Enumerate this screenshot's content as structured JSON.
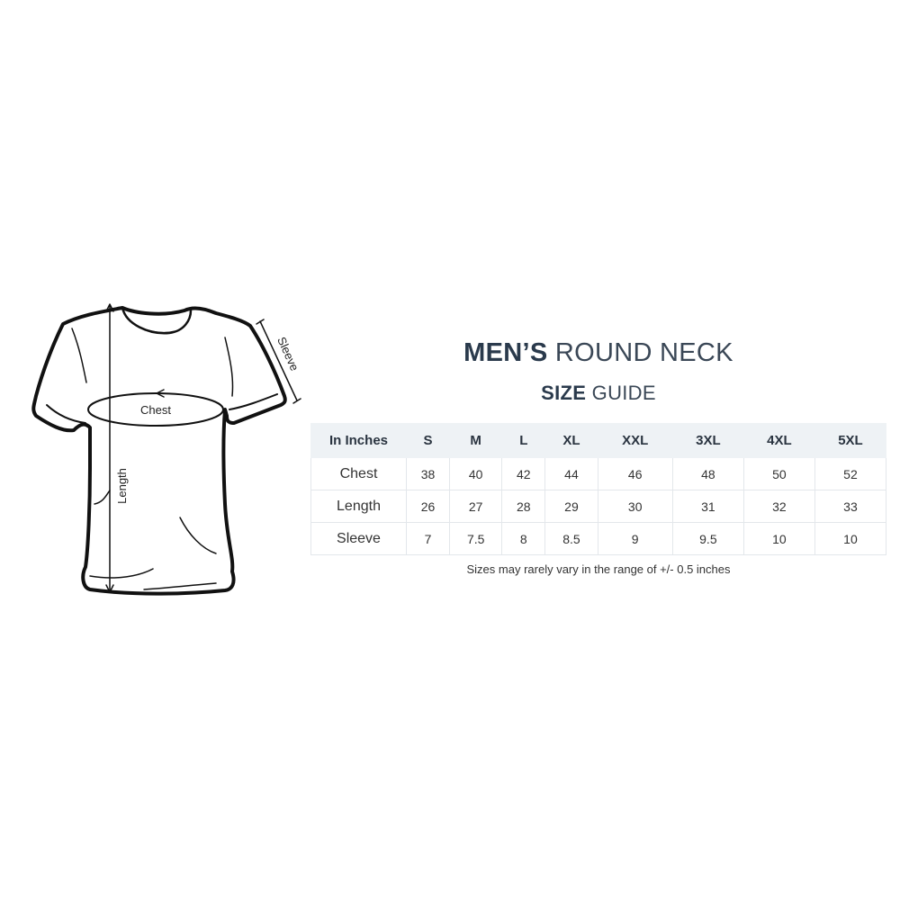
{
  "title": {
    "bold": "MEN’S",
    "light": "ROUND NECK"
  },
  "subtitle": {
    "bold": "SIZE",
    "light": "GUIDE"
  },
  "diagram_labels": {
    "chest": "Chest",
    "length": "Length",
    "sleeve": "Sleeve"
  },
  "table": {
    "headers": [
      "In Inches",
      "S",
      "M",
      "L",
      "XL",
      "XXL",
      "3XL",
      "4XL",
      "5XL"
    ],
    "rows": [
      {
        "label": "Chest",
        "values": [
          "38",
          "40",
          "42",
          "44",
          "46",
          "48",
          "50",
          "52"
        ]
      },
      {
        "label": "Length",
        "values": [
          "26",
          "27",
          "28",
          "29",
          "30",
          "31",
          "32",
          "33"
        ]
      },
      {
        "label": "Sleeve",
        "values": [
          "7",
          "7.5",
          "8",
          "8.5",
          "9",
          "9.5",
          "10",
          "10"
        ]
      }
    ]
  },
  "note": "Sizes may rarely vary in the range of +/- 0.5 inches",
  "colors": {
    "heading": "#2a3a4c",
    "header_bg": "#eef2f5",
    "border": "#e3e7eb"
  }
}
